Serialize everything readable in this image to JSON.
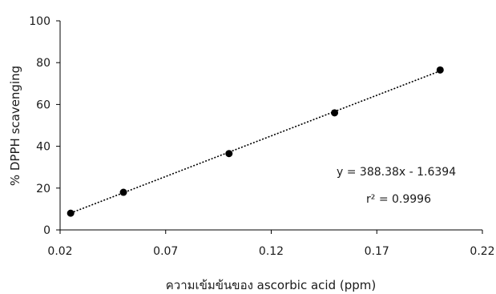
{
  "chart_data": {
    "type": "scatter",
    "title": "",
    "xlabel": "ความเข้มข้นของ ascorbic acid (ppm)",
    "ylabel": "% DPPH scavenging",
    "xlim": [
      0.02,
      0.22
    ],
    "ylim": [
      0,
      100
    ],
    "x_ticks": [
      "0.02",
      "0.07",
      "0.12",
      "0.17",
      "0.22"
    ],
    "y_ticks": [
      "0",
      "20",
      "40",
      "60",
      "80",
      "100"
    ],
    "grid": false,
    "series": [
      {
        "x": [
          0.025,
          0.05,
          0.1,
          0.15,
          0.2
        ],
        "y": [
          8.0,
          18.0,
          36.5,
          56.0,
          76.5
        ]
      }
    ],
    "trendline": {
      "type": "linear",
      "style": "dotted",
      "slope": 388.38,
      "intercept": -1.6394,
      "equation": "y = 388.38x - 1.6394",
      "r_squared": "r² = 0.9996"
    },
    "colors": {
      "marker": "#000000",
      "trendline": "#000000",
      "axis": "#000000"
    }
  }
}
